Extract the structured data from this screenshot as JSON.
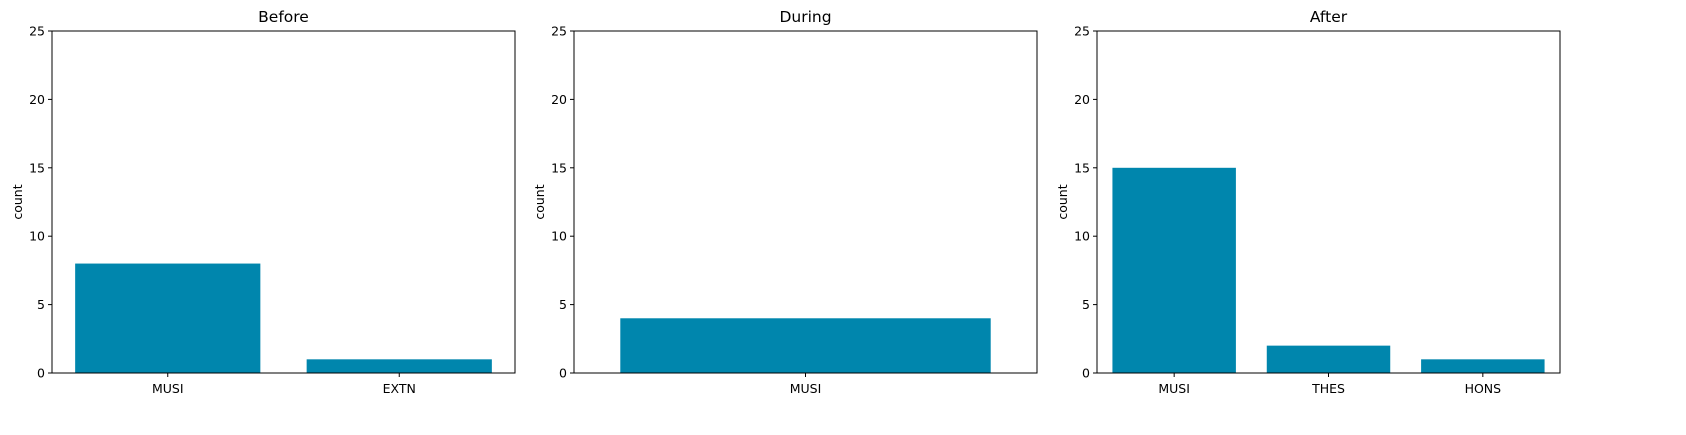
{
  "chart_data": [
    {
      "type": "bar",
      "title": "Before",
      "xlabel": "",
      "ylabel": "count",
      "categories": [
        "MUSI",
        "EXTN"
      ],
      "values": [
        8,
        1
      ],
      "ylim": [
        0,
        25
      ],
      "yticks": [
        0,
        5,
        10,
        15,
        20,
        25
      ],
      "grid": false,
      "color": "#0086ad"
    },
    {
      "type": "bar",
      "title": "During",
      "xlabel": "",
      "ylabel": "count",
      "categories": [
        "MUSI"
      ],
      "values": [
        4
      ],
      "ylim": [
        0,
        25
      ],
      "yticks": [
        0,
        5,
        10,
        15,
        20,
        25
      ],
      "grid": false,
      "color": "#0086ad"
    },
    {
      "type": "bar",
      "title": "After",
      "xlabel": "",
      "ylabel": "count",
      "categories": [
        "MUSI",
        "THES",
        "HONS"
      ],
      "values": [
        15,
        2,
        1
      ],
      "ylim": [
        0,
        25
      ],
      "yticks": [
        0,
        5,
        10,
        15,
        20,
        25
      ],
      "grid": false,
      "color": "#0086ad"
    }
  ]
}
